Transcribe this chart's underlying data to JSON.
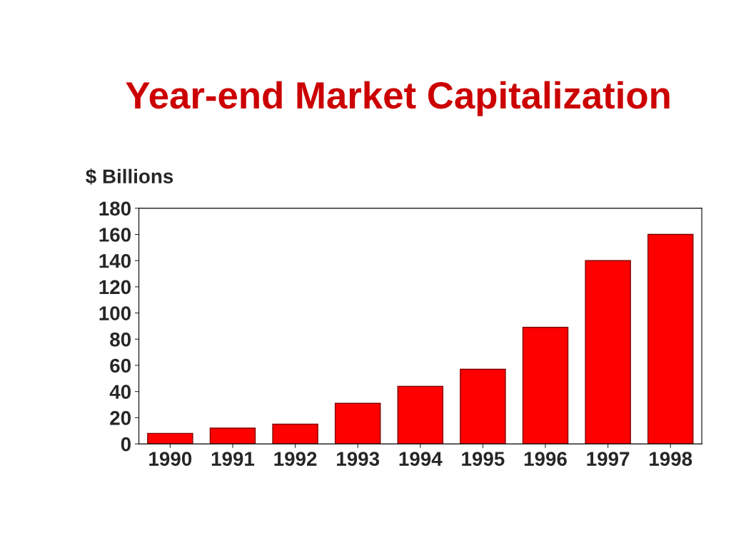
{
  "chart_data": {
    "type": "bar",
    "title": "Year-end Market Capitalization",
    "ylabel": "$ Billions",
    "categories": [
      "1990",
      "1991",
      "1992",
      "1993",
      "1994",
      "1995",
      "1996",
      "1997",
      "1998"
    ],
    "values": [
      8,
      12,
      15,
      31,
      44,
      57,
      89,
      140,
      160
    ],
    "color": "#ff0000",
    "ylim": [
      0,
      180
    ],
    "yticks": [
      0,
      20,
      40,
      60,
      80,
      100,
      120,
      140,
      160,
      180
    ],
    "grid": false,
    "legend": false
  }
}
